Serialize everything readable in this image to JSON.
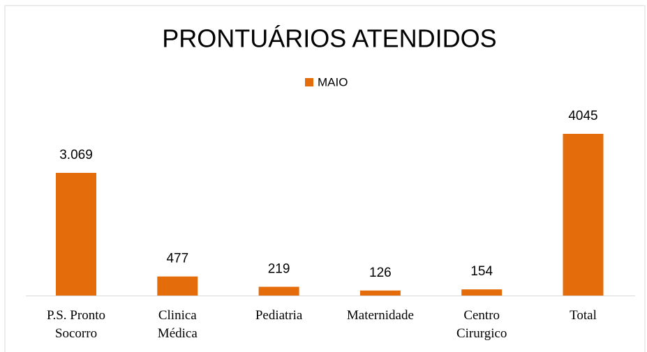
{
  "chart_data": {
    "type": "bar",
    "title": "PRONTUÁRIOS ATENDIDOS",
    "categories": [
      "P.S. Pronto Socorro",
      "Clinica Médica",
      "Pediatria",
      "Maternidade",
      "Centro Cirurgico",
      "Total"
    ],
    "series": [
      {
        "name": "MAIO",
        "color": "#e46c0a",
        "values": [
          3069,
          477,
          219,
          126,
          154,
          4045
        ],
        "value_labels": [
          "3.069",
          "477",
          "219",
          "126",
          "154",
          "4045"
        ]
      }
    ],
    "legend": "top"
  }
}
